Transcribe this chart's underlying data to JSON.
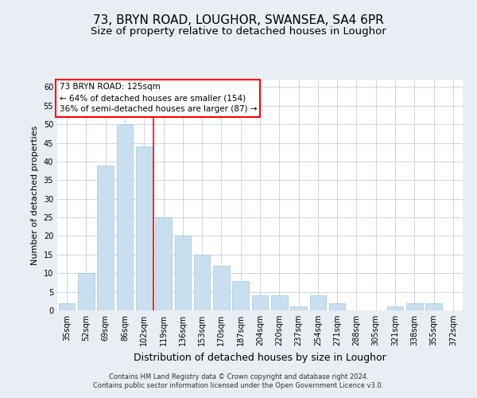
{
  "title1": "73, BRYN ROAD, LOUGHOR, SWANSEA, SA4 6PR",
  "title2": "Size of property relative to detached houses in Loughor",
  "xlabel": "Distribution of detached houses by size in Loughor",
  "ylabel": "Number of detached properties",
  "categories": [
    "35sqm",
    "52sqm",
    "69sqm",
    "86sqm",
    "102sqm",
    "119sqm",
    "136sqm",
    "153sqm",
    "170sqm",
    "187sqm",
    "204sqm",
    "220sqm",
    "237sqm",
    "254sqm",
    "271sqm",
    "288sqm",
    "305sqm",
    "321sqm",
    "338sqm",
    "355sqm",
    "372sqm"
  ],
  "values": [
    2,
    10,
    39,
    50,
    44,
    25,
    20,
    15,
    12,
    8,
    4,
    4,
    1,
    4,
    2,
    0,
    0,
    1,
    2,
    2,
    0
  ],
  "bar_color": "#c8dff0",
  "bar_edge_color": "#a0c4e0",
  "red_line_x": 4.5,
  "property_label": "73 BRYN ROAD: 125sqm",
  "annotation_line1": "← 64% of detached houses are smaller (154)",
  "annotation_line2": "36% of semi-detached houses are larger (87) →",
  "ylim": [
    0,
    62
  ],
  "yticks": [
    0,
    5,
    10,
    15,
    20,
    25,
    30,
    35,
    40,
    45,
    50,
    55,
    60
  ],
  "footer1": "Contains HM Land Registry data © Crown copyright and database right 2024.",
  "footer2": "Contains public sector information licensed under the Open Government Licence v3.0.",
  "bg_color": "#e8eef4",
  "plot_bg_color": "#ffffff",
  "grid_color": "#c0d0e0",
  "title1_fontsize": 11,
  "title2_fontsize": 9.5,
  "xlabel_fontsize": 9,
  "ylabel_fontsize": 8,
  "tick_fontsize": 7,
  "annotation_fontsize": 7.5,
  "footer_fontsize": 6
}
